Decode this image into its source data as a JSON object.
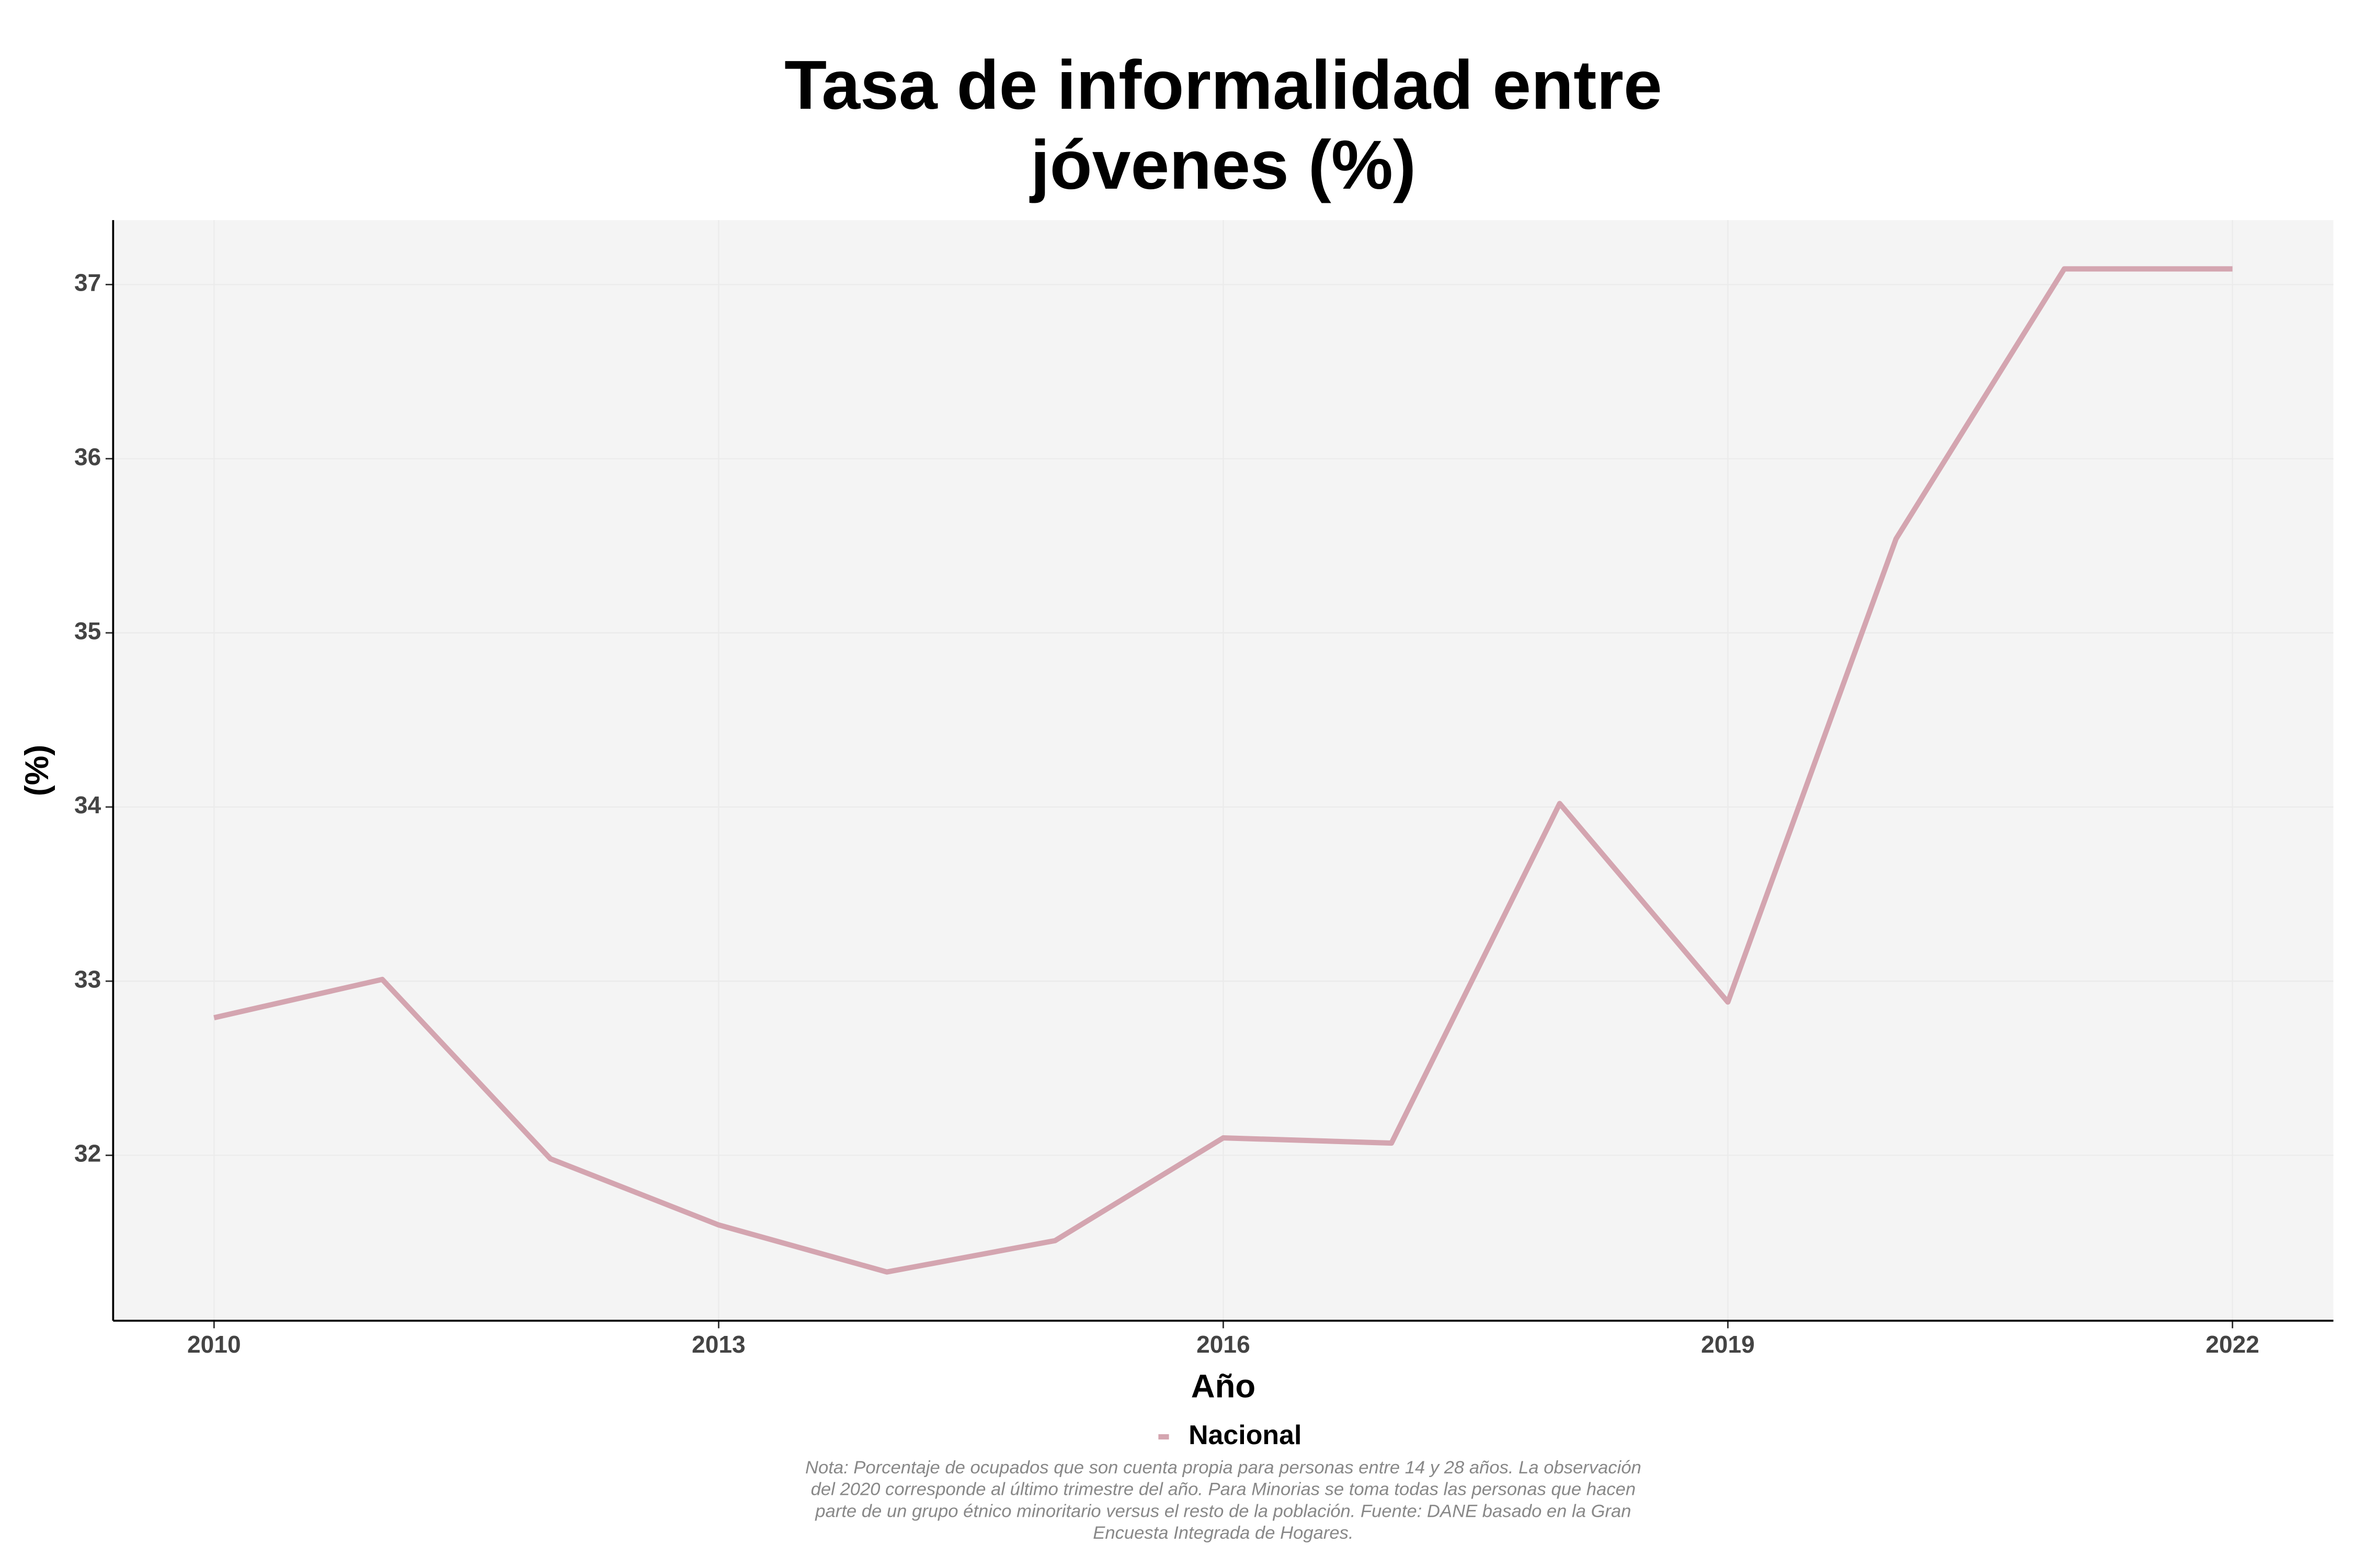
{
  "chart_data": {
    "type": "line",
    "title": [
      "Tasa de informalidad entre",
      "jóvenes (%)"
    ],
    "x_label": "Año",
    "y_label": "(%)",
    "x": [
      2010,
      2011,
      2012,
      2013,
      2014,
      2015,
      2016,
      2017,
      2018,
      2019,
      2020,
      2021,
      2022
    ],
    "series": [
      {
        "name": "Nacional",
        "color": "#d4a5b0",
        "values": [
          32.79,
          33.01,
          31.98,
          31.6,
          31.33,
          31.51,
          32.1,
          32.07,
          34.02,
          32.88,
          35.54,
          37.09,
          37.09
        ]
      }
    ],
    "xlim": [
      2009.4,
      2022.6
    ],
    "xticks": [
      2010,
      2013,
      2016,
      2019,
      2022
    ],
    "ylim": [
      31.05,
      37.37
    ],
    "yticks": [
      32,
      33,
      34,
      35,
      36,
      37
    ],
    "grid": true,
    "legend": "bottom",
    "note": [
      "Nota: Porcentaje de ocupados que son cuenta propia para personas entre 14 y 28 años. La observación",
      "del 2020 corresponde al último trimestre del año. Para Minorias se toma todas las personas que hacen",
      "parte de un grupo étnico minoritario versus el resto de la población. Fuente: DANE basado en la Gran",
      "Encuesta Integrada de Hogares."
    ]
  }
}
